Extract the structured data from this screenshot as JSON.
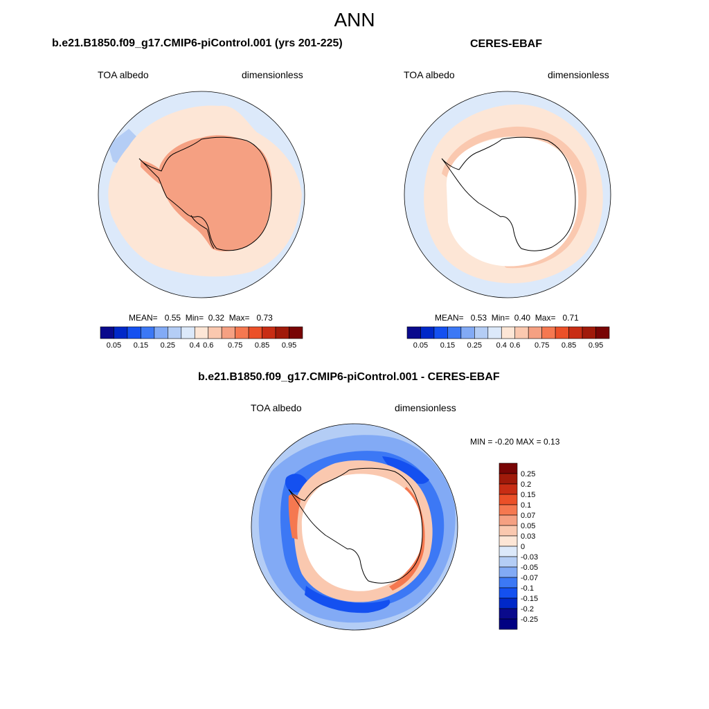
{
  "main_title": "ANN",
  "panels": [
    {
      "title": "b.e21.B1850.f09_g17.CMIP6-piControl.001 (yrs 201-225)",
      "var_label": "TOA albedo",
      "units": "dimensionless",
      "mean_label": "MEAN=",
      "mean": "0.55",
      "min_label": "Min=",
      "min": "0.32",
      "max_label": "Max=",
      "max": "0.73"
    },
    {
      "title": "CERES-EBAF",
      "var_label": "TOA albedo",
      "units": "dimensionless",
      "mean_label": "MEAN=",
      "mean": "0.53",
      "min_label": "Min=",
      "min": "0.40",
      "max_label": "Max=",
      "max": "0.71"
    },
    {
      "title": "b.e21.B1850.f09_g17.CMIP6-piControl.001 - CERES-EBAF",
      "var_label": "TOA albedo",
      "units": "dimensionless",
      "minmax_text": "MIN =  -0.20 MAX =   0.13"
    }
  ],
  "chart_data": [
    {
      "type": "heatmap",
      "projection": "south-polar-stereographic",
      "title": "b.e21.B1850.f09_g17.CMIP6-piControl.001 (yrs 201-225)",
      "variable": "TOA albedo",
      "units": "dimensionless",
      "mean": 0.55,
      "min": 0.32,
      "max": 0.73,
      "colorbar": {
        "orientation": "horizontal",
        "tick_labels": [
          "0.05",
          "0.15",
          "0.25",
          "0.4",
          "0.6",
          "0.75",
          "0.85",
          "0.95"
        ],
        "colors": [
          "#0a0a8c",
          "#0028c8",
          "#1450f0",
          "#3c78f5",
          "#82aaf5",
          "#b4cdf5",
          "#dce9fa",
          "#fde6d6",
          "#fac8af",
          "#f5a082",
          "#f57850",
          "#eb5028",
          "#c82d14",
          "#a01a0a",
          "#780505"
        ]
      },
      "regions": [
        {
          "name": "Antarctic ice sheet",
          "approx_value": 0.7
        },
        {
          "name": "sea-ice zone / coastal ocean",
          "approx_value": 0.6
        },
        {
          "name": "mid-latitude Southern Ocean",
          "approx_value": 0.45
        }
      ]
    },
    {
      "type": "heatmap",
      "projection": "south-polar-stereographic",
      "title": "CERES-EBAF",
      "variable": "TOA albedo",
      "units": "dimensionless",
      "mean": 0.53,
      "min": 0.4,
      "max": 0.71,
      "colorbar": {
        "orientation": "horizontal",
        "tick_labels": [
          "0.05",
          "0.15",
          "0.25",
          "0.4",
          "0.6",
          "0.75",
          "0.85",
          "0.95"
        ],
        "colors": [
          "#0a0a8c",
          "#0028c8",
          "#1450f0",
          "#3c78f5",
          "#82aaf5",
          "#b4cdf5",
          "#dce9fa",
          "#fde6d6",
          "#fac8af",
          "#f5a082",
          "#f57850",
          "#eb5028",
          "#c82d14",
          "#a01a0a",
          "#780505"
        ]
      },
      "regions": [
        {
          "name": "Antarctica",
          "approx_value": null,
          "note": "missing data (white)"
        },
        {
          "name": "coastal ring",
          "approx_value": 0.65
        },
        {
          "name": "sea-ice zone",
          "approx_value": 0.6
        },
        {
          "name": "mid-latitude Southern Ocean",
          "approx_value": 0.45
        }
      ]
    },
    {
      "type": "heatmap",
      "projection": "south-polar-stereographic",
      "title": "b.e21.B1850.f09_g17.CMIP6-piControl.001 - CERES-EBAF",
      "variable": "TOA albedo",
      "units": "dimensionless",
      "min": -0.2,
      "max": 0.13,
      "colorbar": {
        "orientation": "vertical",
        "tick_labels": [
          "0.25",
          "0.2",
          "0.15",
          "0.1",
          "0.07",
          "0.05",
          "0.03",
          "0",
          "-0.03",
          "-0.05",
          "-0.07",
          "-0.1",
          "-0.15",
          "-0.2",
          "-0.25"
        ],
        "colors": [
          "#780505",
          "#a01a0a",
          "#c82d14",
          "#eb5028",
          "#f57850",
          "#f5a082",
          "#fac8af",
          "#fde6d6",
          "#dce9fa",
          "#b4cdf5",
          "#82aaf5",
          "#3c78f5",
          "#1450f0",
          "#0028c8",
          "#0a0a8c",
          "#000082"
        ]
      },
      "regions": [
        {
          "name": "Antarctica",
          "approx_value": null,
          "note": "missing data (white)"
        },
        {
          "name": "coastal ring",
          "approx_value": 0.1
        },
        {
          "name": "sea-ice edge band",
          "approx_value": -0.12
        },
        {
          "name": "open Southern Ocean",
          "approx_value": -0.05
        }
      ]
    }
  ],
  "colors": {
    "continent_model": "#f5a082",
    "near_zero_blue": "#dce9fa",
    "light_orange": "#fde6d6"
  }
}
